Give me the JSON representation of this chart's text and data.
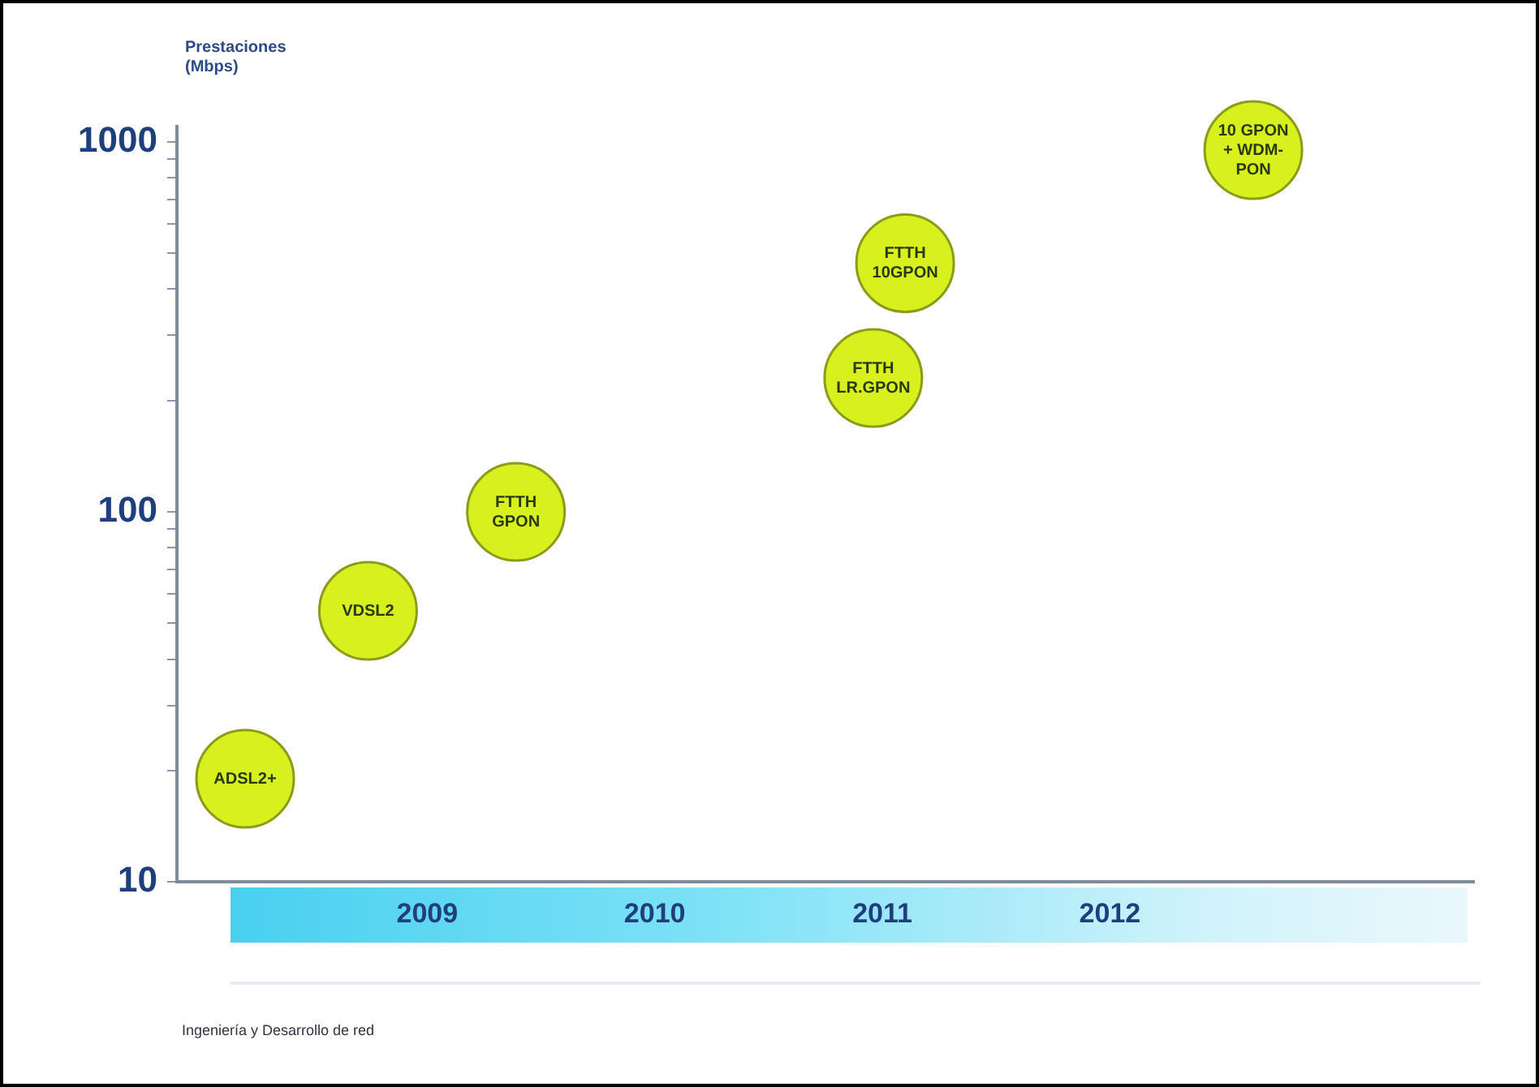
{
  "chart_data": {
    "type": "scatter",
    "ylabel": "Prestaciones (Mbps)",
    "x": [
      2008.2,
      2008.74,
      2009.39,
      2010.96,
      2011.1,
      2012.63
    ],
    "series": [
      {
        "color": "#d7f01e",
        "values": [
          19,
          54,
          100,
          230,
          470,
          950
        ]
      }
    ],
    "marker": "circle",
    "log": "y",
    "grid": false,
    "legend": false,
    "xlim": [
      2007.9,
      2013.6
    ],
    "xticks": [
      2009,
      2010,
      2011,
      2012
    ],
    "ylim": [
      10,
      1100
    ],
    "yticks": [
      10,
      {
        "value": 20,
        "label": null
      },
      {
        "value": 30,
        "label": null
      },
      {
        "value": 40,
        "label": null
      },
      {
        "value": 50,
        "label": null
      },
      {
        "value": 60,
        "label": null
      },
      {
        "value": 70,
        "label": null
      },
      {
        "value": 80,
        "label": null
      },
      {
        "value": 90,
        "label": null
      },
      100,
      {
        "value": 200,
        "label": null
      },
      {
        "value": 300,
        "label": null
      },
      {
        "value": 400,
        "label": null
      },
      {
        "value": 500,
        "label": null
      },
      {
        "value": 600,
        "label": null
      },
      {
        "value": 700,
        "label": null
      },
      {
        "value": 800,
        "label": null
      },
      {
        "value": 900,
        "label": null
      },
      1000
    ],
    "annotations": [
      {
        "text": "ADSL2+",
        "x": 2008.2,
        "y": 19
      },
      {
        "text": "VDSL2",
        "x": 2008.74,
        "y": 54
      },
      {
        "text": "FTTH\nGPON",
        "x": 2009.39,
        "y": 100
      },
      {
        "text": "FTTH\nLR.GPON",
        "x": 2010.96,
        "y": 230
      },
      {
        "text": "FTTH\n10GPON",
        "x": 2011.1,
        "y": 470
      },
      {
        "text": "10 GPON\n+ WDM-\nPON",
        "x": 2012.63,
        "y": 950
      },
      "Ingeniería y Desarrollo de red"
    ]
  }
}
